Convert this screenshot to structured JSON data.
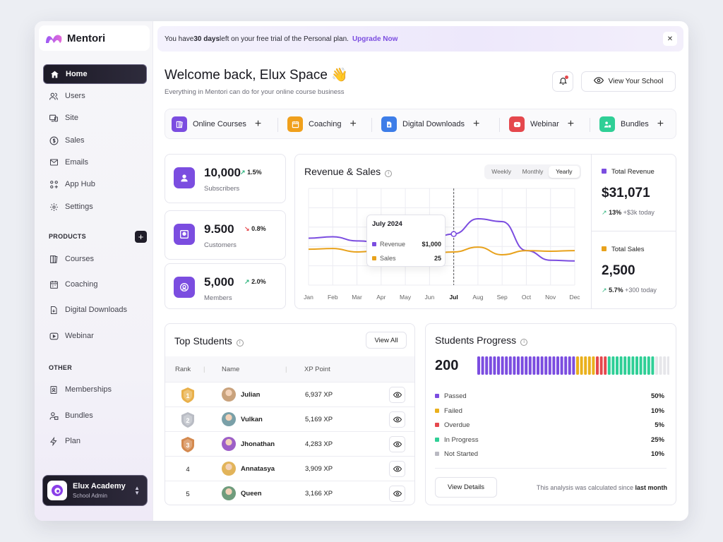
{
  "brand": {
    "name": "Mentori"
  },
  "sidebar": {
    "main": [
      {
        "label": "Home",
        "icon": "home-icon"
      },
      {
        "label": "Users",
        "icon": "users-icon"
      },
      {
        "label": "Site",
        "icon": "site-icon"
      },
      {
        "label": "Sales",
        "icon": "dollar-icon"
      },
      {
        "label": "Emails",
        "icon": "mail-icon"
      },
      {
        "label": "App Hub",
        "icon": "apps-icon"
      },
      {
        "label": "Settings",
        "icon": "gear-icon"
      }
    ],
    "products_label": "PRODUCTS",
    "products": [
      {
        "label": "Courses",
        "icon": "book-icon"
      },
      {
        "label": "Coaching",
        "icon": "calendar-icon"
      },
      {
        "label": "Digital Downloads",
        "icon": "download-file-icon"
      },
      {
        "label": "Webinar",
        "icon": "play-icon"
      }
    ],
    "other_label": "OTHER",
    "other": [
      {
        "label": "Memberships",
        "icon": "id-card-icon"
      },
      {
        "label": "Bundles",
        "icon": "bundle-icon"
      },
      {
        "label": "Plan",
        "icon": "lightning-icon"
      }
    ],
    "account": {
      "name": "Elux Academy",
      "role": "School Admin"
    }
  },
  "banner": {
    "text_before": "You have ",
    "days": "30 days",
    "text_after": " left on your free trial of the Personal plan.",
    "upgrade": "Upgrade Now"
  },
  "header": {
    "title": "Welcome back, Elux Space 👋",
    "subtitle": "Everything in Mentori can do for your online course business",
    "view_school": "View Your School"
  },
  "products_bar": [
    {
      "label": "Online Courses",
      "color": "#7b4de0"
    },
    {
      "label": "Coaching",
      "color": "#f0a01c"
    },
    {
      "label": "Digital Downloads",
      "color": "#3d7de8"
    },
    {
      "label": "Webinar",
      "color": "#e5484d"
    },
    {
      "label": "Bundles",
      "color": "#2fcf96"
    }
  ],
  "stats": [
    {
      "value": "10,000",
      "change": "1.5%",
      "dir": "up",
      "label": "Subscribers"
    },
    {
      "value": "9.500",
      "change": "0.8%",
      "dir": "down",
      "label": "Customers"
    },
    {
      "value": "5,000",
      "change": "2.0%",
      "dir": "up",
      "label": "Members"
    }
  ],
  "revenue": {
    "title": "Revenue & Sales",
    "periods": [
      "Weekly",
      "Monthly",
      "Yearly"
    ],
    "active_period": "Yearly",
    "tooltip": {
      "title": "July 2024",
      "revenue_label": "Revenue",
      "revenue_value": "$1,000",
      "sales_label": "Sales",
      "sales_value": "25"
    },
    "total_revenue": {
      "label": "Total Revenue",
      "value": "$31,071",
      "change": "13%",
      "note": "+$3k today"
    },
    "total_sales": {
      "label": "Total Sales",
      "value": "2,500",
      "change": "5.7%",
      "note": "+300 today"
    }
  },
  "chart_data": {
    "type": "line",
    "categories": [
      "Jan",
      "Feb",
      "Mar",
      "Apr",
      "May",
      "Jun",
      "Jul",
      "Aug",
      "Sep",
      "Oct",
      "Nov",
      "Dec"
    ],
    "highlight": "Jul",
    "series": [
      {
        "name": "Revenue",
        "color": "#7b4de0",
        "values": [
          68,
          70,
          64,
          62,
          63,
          66,
          74,
          96,
          92,
          50,
          36,
          35
        ]
      },
      {
        "name": "Sales",
        "color": "#e8a21c",
        "values": [
          52,
          53,
          48,
          50,
          48,
          46,
          48,
          55,
          44,
          50,
          49,
          50
        ]
      }
    ],
    "ylim": [
      0,
      140
    ],
    "grid": true
  },
  "students": {
    "title": "Top Students",
    "view_all": "View All",
    "columns": [
      "Rank",
      "Name",
      "XP Point"
    ],
    "rows": [
      {
        "rank": "1",
        "name": "Julian",
        "xp": "6,937 XP",
        "medal": "#e9b04a"
      },
      {
        "rank": "2",
        "name": "Vulkan",
        "xp": "5,169 XP",
        "medal": "#b9bcc4"
      },
      {
        "rank": "3",
        "name": "Jhonathan",
        "xp": "4,283 XP",
        "medal": "#d4894e"
      },
      {
        "rank": "4",
        "name": "Annatasya",
        "xp": "3,909 XP",
        "medal": ""
      },
      {
        "rank": "5",
        "name": "Queen",
        "xp": "3,166 XP",
        "medal": ""
      }
    ]
  },
  "progress": {
    "title": "Students Progress",
    "total": "200",
    "items": [
      {
        "label": "Passed",
        "pct": "50%",
        "color": "#7b4de0",
        "bars": 25
      },
      {
        "label": "Failed",
        "pct": "10%",
        "color": "#eab01c",
        "bars": 5
      },
      {
        "label": "Overdue",
        "pct": "5%",
        "color": "#e5484d",
        "bars": 3
      },
      {
        "label": "In Progress",
        "pct": "25%",
        "color": "#2fcf96",
        "bars": 12
      },
      {
        "label": "Not Started",
        "pct": "10%",
        "color": "#e6e6ea",
        "bars": 5
      }
    ],
    "view_details": "View Details",
    "note_prefix": "This analysis was calculated since ",
    "note_bold": "last month"
  }
}
